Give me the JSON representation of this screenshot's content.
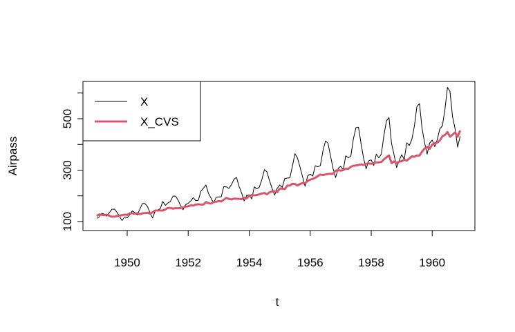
{
  "chart_data": {
    "type": "line",
    "xlabel": "t",
    "ylabel": "Airpass",
    "xlim": [
      1948.55,
      1961.4
    ],
    "ylim": [
      65,
      645
    ],
    "x_ticks": [
      1950,
      1952,
      1954,
      1956,
      1958,
      1960
    ],
    "x_tick_labels": [
      "1950",
      "1952",
      "1954",
      "1956",
      "1958",
      "1960"
    ],
    "y_ticks": [
      100,
      200,
      300,
      400,
      500,
      600
    ],
    "y_tick_labels": [
      "100",
      "",
      "300",
      "",
      "500",
      ""
    ],
    "x_start": 1949,
    "legend_position": "top-left",
    "series": [
      {
        "name": "X",
        "color": "#000000",
        "values": [
          112,
          118,
          132,
          129,
          121,
          135,
          148,
          148,
          136,
          119,
          104,
          118,
          115,
          126,
          141,
          135,
          125,
          149,
          170,
          170,
          158,
          133,
          114,
          140,
          145,
          150,
          178,
          163,
          172,
          178,
          199,
          199,
          184,
          162,
          146,
          166,
          171,
          180,
          193,
          181,
          183,
          218,
          230,
          242,
          209,
          191,
          172,
          194,
          196,
          196,
          236,
          235,
          229,
          243,
          264,
          272,
          237,
          211,
          180,
          201,
          204,
          188,
          235,
          227,
          234,
          264,
          302,
          293,
          259,
          229,
          203,
          229,
          242,
          233,
          267,
          269,
          270,
          315,
          364,
          347,
          312,
          274,
          237,
          278,
          284,
          277,
          317,
          313,
          318,
          374,
          413,
          405,
          355,
          306,
          271,
          306,
          315,
          301,
          356,
          348,
          355,
          422,
          465,
          467,
          404,
          347,
          305,
          336,
          340,
          318,
          362,
          348,
          363,
          435,
          491,
          505,
          404,
          359,
          310,
          337,
          360,
          342,
          406,
          396,
          420,
          472,
          548,
          559,
          463,
          407,
          362,
          405,
          417,
          391,
          419,
          461,
          472,
          535,
          622,
          606,
          508,
          461,
          390,
          432
        ]
      },
      {
        "name": "X_CVS",
        "color": "#d9546a",
        "values": [
          122,
          128,
          126,
          125,
          127,
          122,
          119,
          119,
          121,
          123,
          125,
          127,
          126,
          132,
          132,
          130,
          133,
          128,
          132,
          133,
          134,
          131,
          136,
          143,
          143,
          143,
          143,
          147,
          153,
          153,
          150,
          152,
          152,
          152,
          155,
          158,
          159,
          163,
          162,
          166,
          167,
          166,
          166,
          176,
          171,
          170,
          176,
          177,
          180,
          178,
          185,
          192,
          188,
          186,
          189,
          189,
          188,
          187,
          193,
          190,
          200,
          203,
          202,
          203,
          206,
          209,
          211,
          206,
          214,
          217,
          218,
          214,
          228,
          228,
          226,
          240,
          240,
          247,
          246,
          240,
          246,
          250,
          249,
          258,
          263,
          266,
          270,
          277,
          283,
          281,
          283,
          285,
          286,
          286,
          298,
          300,
          298,
          300,
          306,
          305,
          313,
          317,
          318,
          320,
          323,
          320,
          325,
          326,
          325,
          327,
          330,
          330,
          332,
          342,
          350,
          357,
          327,
          334,
          328,
          333,
          335,
          340,
          337,
          345,
          354,
          352,
          357,
          357,
          372,
          384,
          390,
          383,
          400,
          404,
          407,
          415,
          432,
          437,
          448,
          430,
          438,
          447,
          430,
          454
        ]
      }
    ]
  }
}
